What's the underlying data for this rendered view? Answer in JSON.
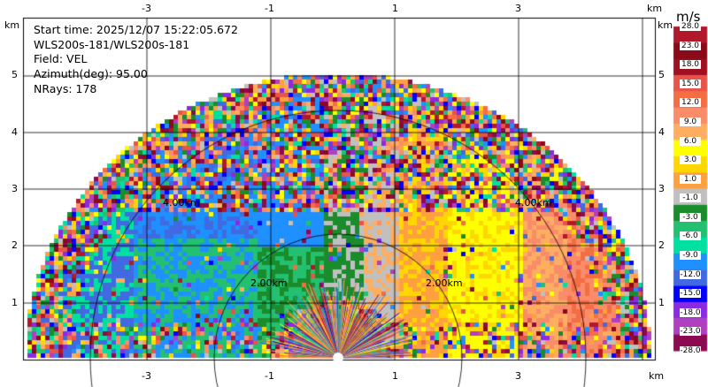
{
  "info": {
    "start_time": "Start time: 2025/12/07 15:22:05.672",
    "station": "WLS200s-181/WLS200s-181",
    "field": "Field: VEL",
    "azimuth": "Azimuth(deg): 95.00",
    "nrays": "NRays: 178"
  },
  "axes": {
    "x_ticks": [
      "-3",
      "-1",
      "1",
      "3"
    ],
    "x_values": [
      -3,
      -1,
      1,
      3
    ],
    "y_ticks": [
      "1",
      "2",
      "3",
      "4",
      "5"
    ],
    "y_values": [
      1,
      2,
      3,
      4,
      5
    ],
    "unit_top_left": "km",
    "unit_top_right": "km",
    "unit_right": "km",
    "unit_bottom_right": "km"
  },
  "rings": {
    "labels": [
      "2.00km",
      "2.00km",
      "4.00km",
      "4.00km"
    ]
  },
  "colorbar": {
    "title": "m/s",
    "labels": [
      "28.0",
      "23.0",
      "18.0",
      "15.0",
      "12.0",
      "9.0",
      "6.0",
      "3.0",
      "1.0",
      "-1.0",
      "-3.0",
      "-6.0",
      "-9.0",
      "-12.0",
      "-15.0",
      "-18.0",
      "-23.0",
      "-28.0"
    ],
    "colors": [
      "#b2182b",
      "#8b0a1a",
      "#a01020",
      "#e8534a",
      "#f46d43",
      "#fa8c6a",
      "#fdae61",
      "#ffff00",
      "#ffd700",
      "#ffa040",
      "#c0c0c0",
      "#1a8c2c",
      "#22c070",
      "#00e0a0",
      "#1e90ff",
      "#4169e1",
      "#0000ff",
      "#8a2be2",
      "#b040c0",
      "#8b0a50"
    ]
  }
}
